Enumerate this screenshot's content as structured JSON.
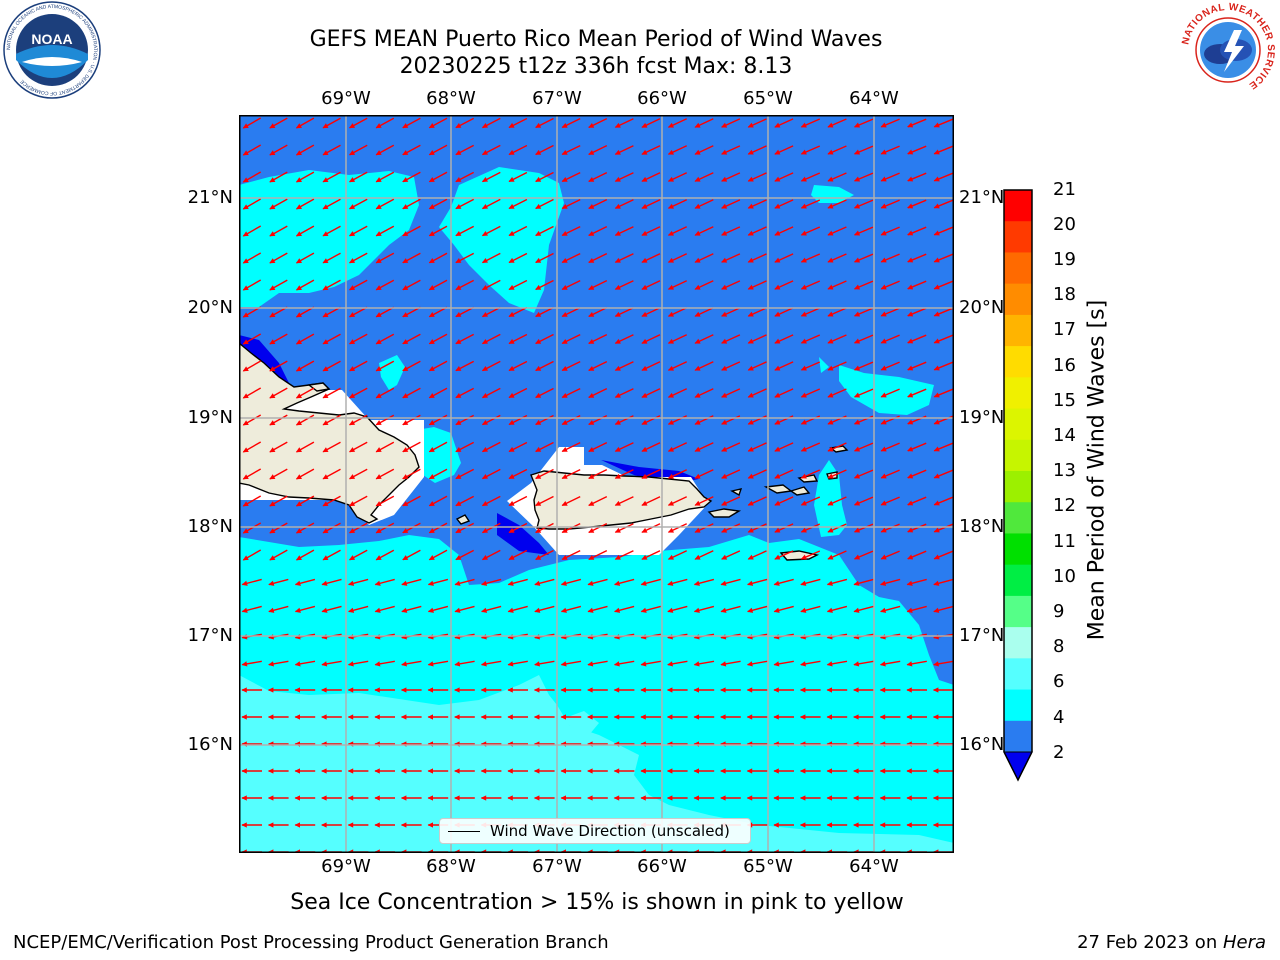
{
  "header": {
    "title_line1": "GEFS MEAN Puerto Rico Mean Period of Wind Waves",
    "title_line2": "20230225 t12z 336h fcst   Max: 8.13"
  },
  "map": {
    "lon_ticks": [
      "69°W",
      "68°W",
      "67°W",
      "66°W",
      "65°W",
      "64°W"
    ],
    "lat_ticks": [
      "21°N",
      "20°N",
      "19°N",
      "18°N",
      "17°N",
      "16°N"
    ],
    "legend_label": "Wind Wave Direction (unscaled)",
    "arrow_color": "#ff0000",
    "land_color": "#eeecdb",
    "ocean_colors": {
      "2-4": "#2a7cf0",
      "4-6": "#00ffff",
      "6-8": "#55ffff",
      "below-2": "#0000ee"
    }
  },
  "colorbar": {
    "label": "Mean Period of Wind Waves [s]",
    "ticks": [
      "21",
      "20",
      "19",
      "18",
      "17",
      "16",
      "15",
      "14",
      "13",
      "12",
      "11",
      "10",
      "9",
      "8",
      "6",
      "4",
      "2"
    ],
    "colors": [
      "#ff0000",
      "#ff3a00",
      "#ff6a00",
      "#ff8c00",
      "#ffb400",
      "#ffdc00",
      "#f0f000",
      "#dcf500",
      "#c6f500",
      "#9cf000",
      "#50e83c",
      "#00e000",
      "#00ee44",
      "#55ff88",
      "#aaffee",
      "#55ffff",
      "#00ffff",
      "#2a7cf0"
    ],
    "under_color": "#0000ee"
  },
  "footer": {
    "sea_ice_note": "Sea Ice Concentration > 15% is shown in pink to yellow",
    "branch": "NCEP/EMC/Verification Post Processing Product Generation Branch",
    "date_prefix": "27 Feb 2023 on ",
    "date_machine": "Hera"
  },
  "logos": {
    "noaa_text": "NOAA",
    "noaa_ring_text": "NATIONAL OCEANIC AND ATMOSPHERIC ADMINISTRATION · U.S. DEPARTMENT OF COMMERCE",
    "nws_ring_text": "NATIONAL WEATHER SERVICE"
  }
}
